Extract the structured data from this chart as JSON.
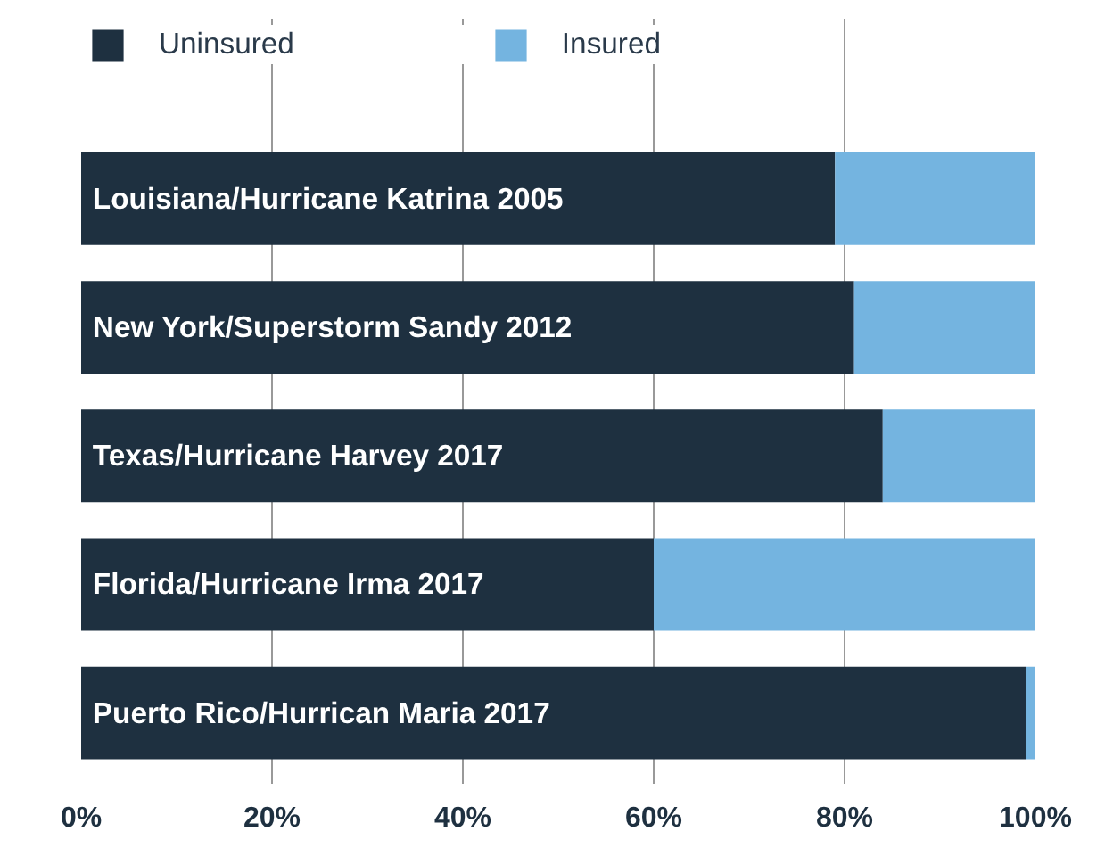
{
  "chart_data": {
    "type": "bar",
    "orientation": "horizontal",
    "stacked": true,
    "categories": [
      "Louisiana/Hurricane Katrina 2005",
      "New York/Superstorm Sandy 2012",
      "Texas/Hurricane Harvey 2017",
      "Florida/Hurricane Irma 2017",
      "Puerto Rico/Hurrican Maria 2017"
    ],
    "series": [
      {
        "name": "Uninsured",
        "color": "#1e3040",
        "values": [
          79,
          81,
          84,
          60,
          99
        ]
      },
      {
        "name": "Insured",
        "color": "#74b4e0",
        "values": [
          21,
          19,
          16,
          40,
          1
        ]
      }
    ],
    "xlim": [
      0,
      100
    ],
    "xticks": [
      {
        "value": 0,
        "label": "0%"
      },
      {
        "value": 20,
        "label": "20%"
      },
      {
        "value": 40,
        "label": "40%"
      },
      {
        "value": 60,
        "label": "60%"
      },
      {
        "value": 80,
        "label": "80%"
      },
      {
        "value": 100,
        "label": "100%"
      }
    ],
    "grid": "x",
    "legend": "top"
  }
}
